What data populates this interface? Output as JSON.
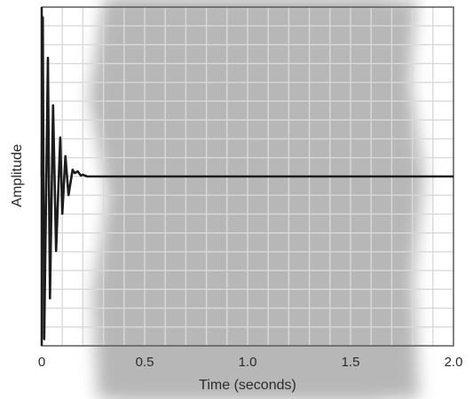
{
  "colors": {
    "background": "#ffffff",
    "scan_shade": "#b7b7b7",
    "grid": "#d9d9d9",
    "plot_frame": "#5a5a5a",
    "trace": "#1c1c1c"
  },
  "chart_data": {
    "type": "line",
    "title": "",
    "xlabel": "Time (seconds)",
    "ylabel": "Amplitude",
    "xlim": [
      0,
      2.0
    ],
    "ylim": [
      -1,
      1
    ],
    "xticks": [
      {
        "value": 0,
        "label": "0"
      },
      {
        "value": 0.5,
        "label": "0.5"
      },
      {
        "value": 1.0,
        "label": "1.0"
      },
      {
        "value": 1.5,
        "label": "1.5"
      },
      {
        "value": 2.0,
        "label": "2.0"
      }
    ],
    "y_tick_labels_shown": false,
    "grid": true,
    "grid_x_divisions": 20,
    "grid_y_divisions": 18,
    "legend": "none",
    "series": [
      {
        "x": [
          0,
          0.005,
          0.012,
          0.03,
          0.04,
          0.055,
          0.07,
          0.09,
          0.1,
          0.115,
          0.13,
          0.15,
          0.16,
          0.175,
          0.19,
          0.2,
          0.22,
          0.24,
          0.26,
          0.5,
          1.0,
          1.5,
          2.0
        ],
        "y": [
          0,
          0.94,
          -0.96,
          0.7,
          -0.72,
          0.42,
          -0.44,
          0.23,
          -0.22,
          0.12,
          -0.11,
          0.04,
          0.02,
          0.03,
          0.005,
          0.01,
          0.0,
          0.0,
          0.0,
          0.0,
          0.0,
          0.0,
          0.0
        ]
      }
    ]
  }
}
